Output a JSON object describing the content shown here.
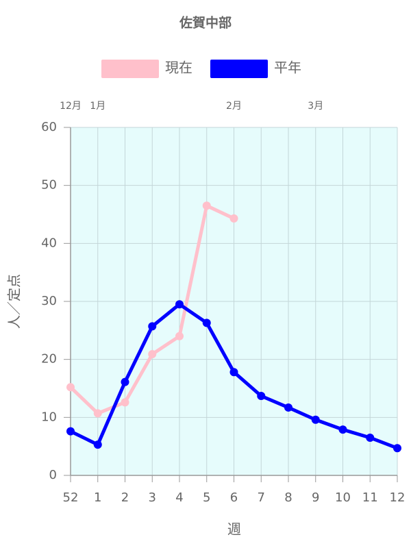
{
  "chart_data": {
    "type": "line",
    "title": "佐賀中部",
    "categories": [
      "52",
      "1",
      "2",
      "3",
      "4",
      "5",
      "6",
      "7",
      "8",
      "9",
      "10",
      "11",
      "12"
    ],
    "top_categories": [
      "12月",
      "1月",
      null,
      null,
      null,
      null,
      "2月",
      null,
      null,
      "3月",
      null,
      null,
      null
    ],
    "series": [
      {
        "name": "現在",
        "color": "#ffc0cb",
        "values": [
          15.2,
          10.7,
          12.6,
          20.9,
          24.0,
          46.5,
          44.3,
          null,
          null,
          null,
          null,
          null,
          null
        ]
      },
      {
        "name": "平年",
        "color": "#0000ff",
        "values": [
          7.6,
          5.3,
          16.1,
          25.7,
          29.5,
          26.3,
          17.8,
          13.7,
          11.7,
          9.6,
          7.9,
          6.5,
          4.7
        ]
      }
    ],
    "xlabel": "週",
    "ylabel": "人／定点",
    "ylim": [
      0,
      60
    ],
    "yticks": [
      0,
      10,
      20,
      30,
      40,
      50,
      60
    ],
    "grid": true,
    "legend": "top",
    "plot_background": "#e6fcfc"
  }
}
